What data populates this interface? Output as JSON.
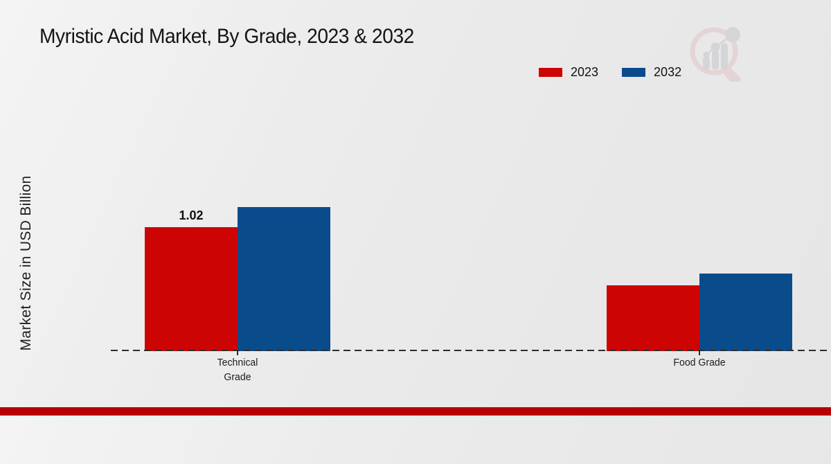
{
  "page": {
    "title": "Myristic Acid Market, By Grade, 2023 & 2032"
  },
  "chart_data": {
    "type": "bar",
    "title": "Myristic Acid Market, By Grade, 2023 & 2032",
    "xlabel": "",
    "ylabel": "Market Size in USD Billion",
    "categories": [
      "Technical Grade",
      "Food Grade"
    ],
    "series": [
      {
        "name": "2023",
        "color": "#cc0404",
        "values": [
          1.02,
          0.54
        ]
      },
      {
        "name": "2032",
        "color": "#0a4b8c",
        "values": [
          1.19,
          0.64
        ]
      }
    ],
    "annotations": [
      {
        "series": "2023",
        "category": "Technical Grade",
        "text": "1.02"
      }
    ],
    "ylim": [
      0,
      1.25
    ],
    "grid": false,
    "legend_position": "top-right",
    "axis_style": "dashed-baseline-only",
    "axis_color": "#2d2d2d"
  },
  "watermark": {
    "icon": "bar-chart-magnifier-logo-icon",
    "ring_color": "#e2c4c7",
    "bar_color": "#c6c6ca"
  },
  "footer": {
    "strip_color": "#b80000"
  }
}
